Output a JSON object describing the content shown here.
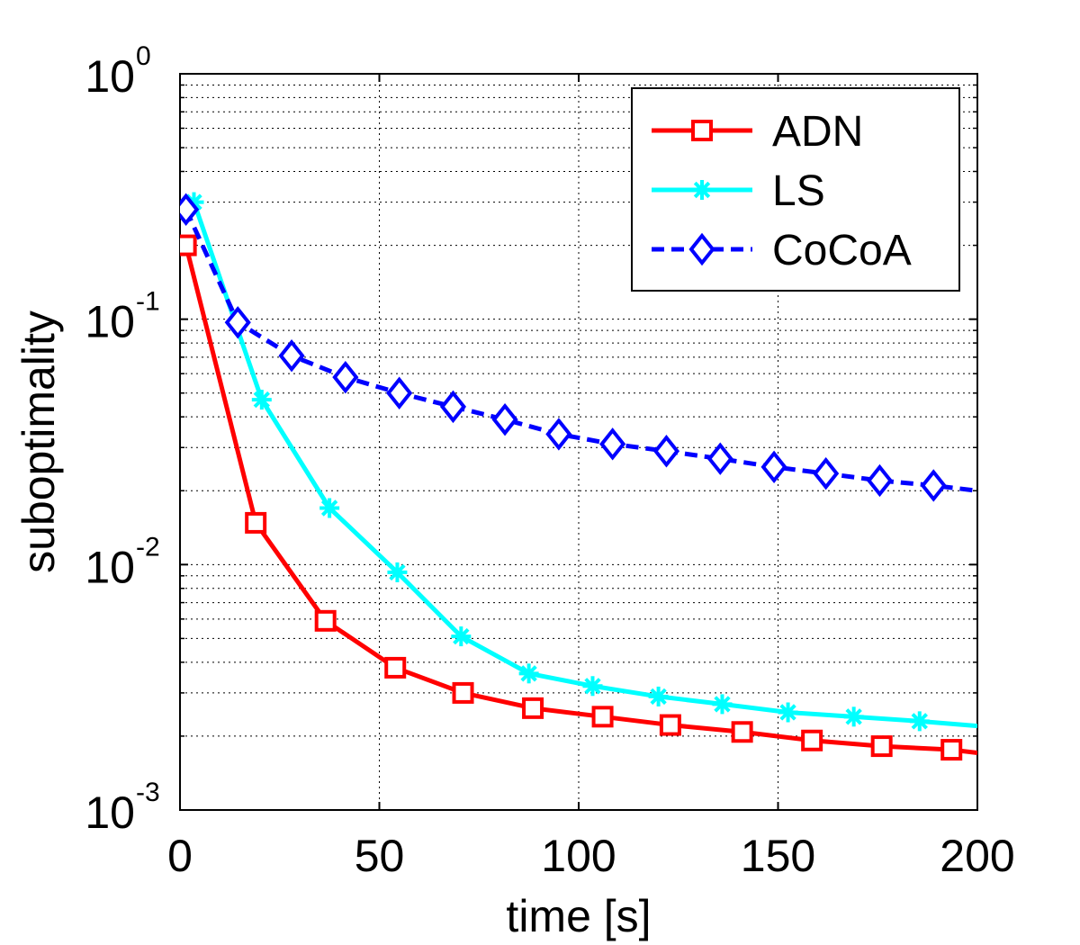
{
  "chart_data": {
    "type": "line",
    "title": "",
    "xlabel": "time [s]",
    "ylabel": "suboptimality",
    "xlim": [
      0,
      200
    ],
    "ylim": [
      0.001,
      1
    ],
    "yscale": "log",
    "grid": true,
    "legend_position": "top-right",
    "x_ticks": [
      {
        "value": 0,
        "label": "0"
      },
      {
        "value": 50,
        "label": "50"
      },
      {
        "value": 100,
        "label": "100"
      },
      {
        "value": 150,
        "label": "150"
      },
      {
        "value": 200,
        "label": "200"
      }
    ],
    "y_ticks": [
      {
        "value": 1,
        "base": "10",
        "exp": "0"
      },
      {
        "value": 0.1,
        "base": "10",
        "exp": "-1"
      },
      {
        "value": 0.01,
        "base": "10",
        "exp": "-2"
      },
      {
        "value": 0.001,
        "base": "10",
        "exp": "-3"
      }
    ],
    "series": [
      {
        "name": "ADN",
        "color": "#ff0000",
        "line_style": "solid",
        "marker": "square",
        "x": [
          1.5,
          19,
          36.5,
          54,
          71,
          88.5,
          106,
          123,
          141,
          158.5,
          176,
          193.5,
          200
        ],
        "y": [
          0.2,
          0.0148,
          0.0059,
          0.0038,
          0.003,
          0.0026,
          0.0024,
          0.00222,
          0.00208,
          0.00192,
          0.00182,
          0.00176,
          0.00171
        ]
      },
      {
        "name": "LS",
        "color": "#00ffff",
        "line_style": "solid",
        "marker": "asterisk",
        "x": [
          3.5,
          20.5,
          37.5,
          54.5,
          70.5,
          87.5,
          103.5,
          120,
          136,
          152.5,
          169,
          185.5,
          200
        ],
        "y": [
          0.3,
          0.047,
          0.017,
          0.0093,
          0.0051,
          0.0036,
          0.0032,
          0.0029,
          0.0027,
          0.0025,
          0.0024,
          0.0023,
          0.0022
        ]
      },
      {
        "name": "CoCoA",
        "color": "#0000ff",
        "line_style": "dashed",
        "marker": "diamond",
        "x": [
          1.5,
          14.5,
          28,
          41.5,
          55,
          68.5,
          81.5,
          95,
          108.5,
          122,
          135.5,
          149,
          162,
          175.5,
          189,
          200
        ],
        "y": [
          0.28,
          0.097,
          0.071,
          0.058,
          0.05,
          0.044,
          0.039,
          0.034,
          0.031,
          0.029,
          0.027,
          0.025,
          0.0235,
          0.022,
          0.021,
          0.02
        ]
      }
    ]
  }
}
